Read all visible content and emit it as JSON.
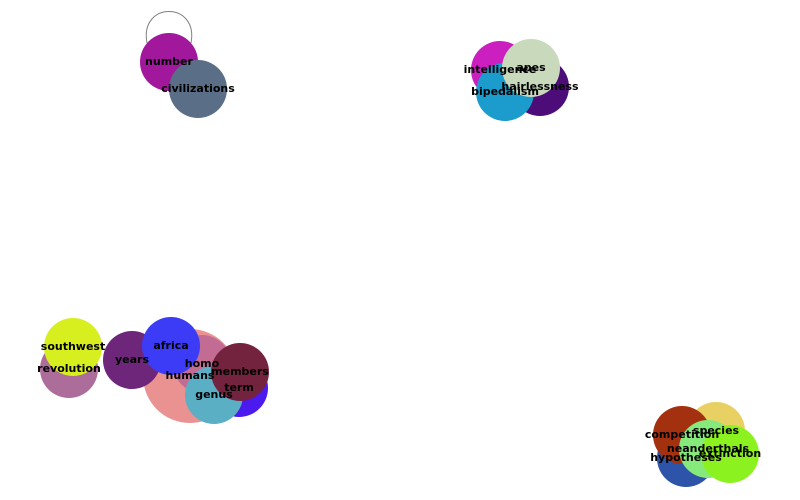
{
  "graph": {
    "nodes": [
      {
        "id": "number",
        "label": "number",
        "color": "#a2189c"
      },
      {
        "id": "civilizations",
        "label": "civilizations",
        "color": "#5b6e87"
      },
      {
        "id": "intelligence",
        "label": "intelligence",
        "color": "#cc1fbf"
      },
      {
        "id": "hairlessness",
        "label": "hairlessness",
        "color": "#4c0d78"
      },
      {
        "id": "bipedalism",
        "label": "bipedalism",
        "color": "#1c9ccd"
      },
      {
        "id": "apes",
        "label": "apes",
        "color": "#c9d9bc"
      },
      {
        "id": "revolution",
        "label": "revolution",
        "color": "#ad6d9b"
      },
      {
        "id": "southwest",
        "label": "southwest",
        "color": "#d7ef1f"
      },
      {
        "id": "humans",
        "label": "humans",
        "color": "#ea9292"
      },
      {
        "id": "years",
        "label": "years",
        "color": "#6d267a"
      },
      {
        "id": "homo",
        "label": "homo",
        "color": "#c26c94"
      },
      {
        "id": "term",
        "label": "term",
        "color": "#4b1aef"
      },
      {
        "id": "genus",
        "label": "genus",
        "color": "#5aafc5"
      },
      {
        "id": "africa",
        "label": "africa",
        "color": "#3c3cf7"
      },
      {
        "id": "members",
        "label": "members",
        "color": "#74233f"
      },
      {
        "id": "hypotheses",
        "label": "hypotheses",
        "color": "#2d54a8"
      },
      {
        "id": "species",
        "label": "species",
        "color": "#e8d162"
      },
      {
        "id": "competition",
        "label": "competition",
        "color": "#a3300f"
      },
      {
        "id": "neanderthals",
        "label": "neanderthals",
        "color": "#85ea7b"
      },
      {
        "id": "extinction",
        "label": "extinction",
        "color": "#8cf21f"
      }
    ],
    "edges": [
      {
        "source": "number",
        "target": "number"
      },
      {
        "source": "number",
        "target": "civilizations"
      },
      {
        "source": "intelligence",
        "target": "apes"
      },
      {
        "source": "bipedalism",
        "target": "apes"
      },
      {
        "source": "hairlessness",
        "target": "apes"
      },
      {
        "source": "southwest",
        "target": "revolution"
      },
      {
        "source": "years",
        "target": "humans"
      },
      {
        "source": "africa",
        "target": "humans"
      },
      {
        "source": "homo",
        "target": "humans"
      },
      {
        "source": "members",
        "target": "humans"
      },
      {
        "source": "term",
        "target": "humans"
      },
      {
        "source": "genus",
        "target": "humans"
      },
      {
        "source": "competition",
        "target": "neanderthals"
      },
      {
        "source": "species",
        "target": "neanderthals"
      },
      {
        "source": "hypotheses",
        "target": "neanderthals"
      },
      {
        "source": "extinction",
        "target": "neanderthals"
      }
    ]
  }
}
